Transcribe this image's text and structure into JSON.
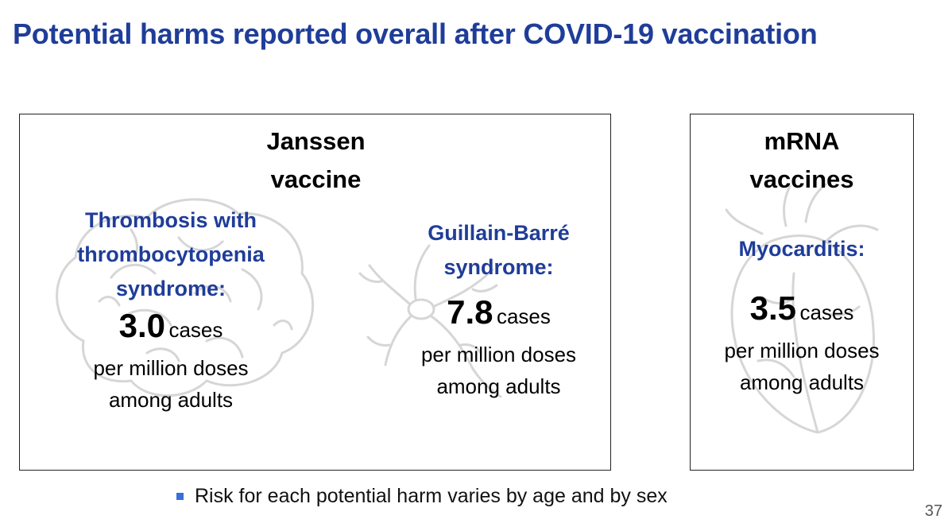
{
  "title": "Potential harms reported overall after COVID-19 vaccination",
  "janssen": {
    "heading_line1": "Janssen",
    "heading_line2": "vaccine",
    "harms": [
      {
        "name_lines": [
          "Thrombosis with",
          "thrombocytopenia",
          "syndrome:"
        ],
        "value": "3.0",
        "unit": "cases",
        "sub_line1": "per million doses",
        "sub_line2": "among adults"
      },
      {
        "name_lines": [
          "Guillain-Barré",
          "syndrome:"
        ],
        "value": "7.8",
        "unit": "cases",
        "sub_line1": "per million doses",
        "sub_line2": "among adults"
      }
    ]
  },
  "mrna": {
    "heading_line1": "mRNA",
    "heading_line2": "vaccines",
    "harm": {
      "name": "Myocarditis:",
      "value": "3.5",
      "unit": "cases",
      "sub_line1": "per million doses",
      "sub_line2": "among adults"
    }
  },
  "footnote": "Risk for each potential harm varies by age and by sex",
  "page_number": "37",
  "colors": {
    "title_blue": "#1f3d99",
    "bullet_blue": "#3a6fd8",
    "watermark_gray": "#d6d6d6"
  },
  "icons": {
    "janssen_left": "brain-icon",
    "janssen_right": "nerve-cell-icon",
    "mrna": "heart-icon"
  }
}
